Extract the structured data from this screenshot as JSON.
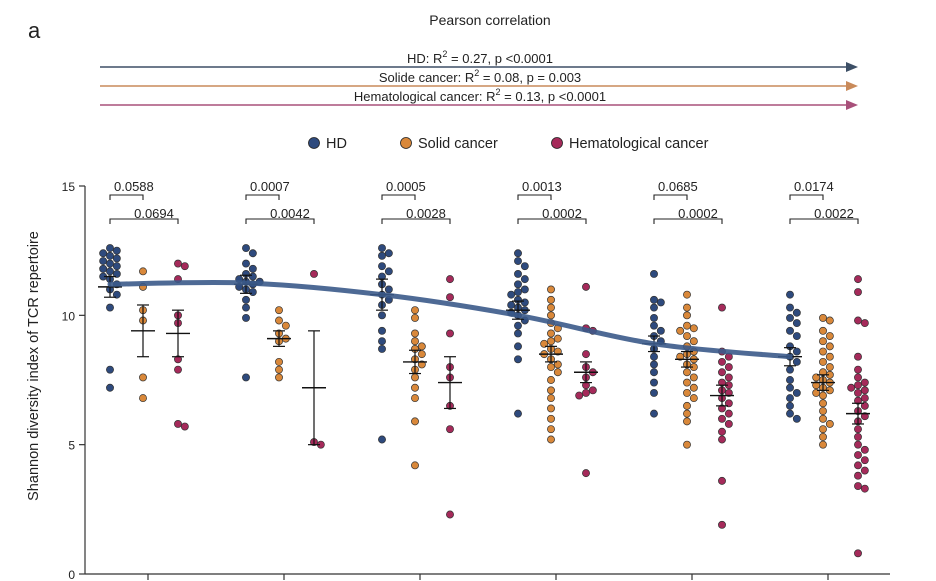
{
  "panel_label": "a",
  "header": {
    "title": "Pearson correlation",
    "lines": [
      {
        "prefix": "HD: R",
        "sup": "2",
        "suffix": " = 0.27,  p <0.0001",
        "color": "#3d4f66"
      },
      {
        "prefix": "Solide cancer: R",
        "sup": "2",
        "suffix": " = 0.08,  p = 0.003",
        "color": "#c98a5a"
      },
      {
        "prefix": "Hematological cancer: R",
        "sup": "2",
        "suffix": " = 0.13, p <0.0001",
        "color": "#a8507a"
      }
    ]
  },
  "legend": [
    {
      "label": "HD",
      "color": "#2e4a7d"
    },
    {
      "label": "Solid cancer",
      "color": "#d9883a"
    },
    {
      "label": "Hematological cancer",
      "color": "#a52a5a"
    }
  ],
  "chart_data": {
    "type": "scatter",
    "ylabel": "Shannon diversity index of TCR repertoire",
    "xlabel": "",
    "ylim": [
      0,
      15
    ],
    "yticks": [
      0,
      5,
      10,
      15
    ],
    "group_count": 6,
    "series_names": [
      "HD",
      "Solid cancer",
      "Hematological cancer"
    ],
    "groups": [
      {
        "hd": {
          "mean": 11.1,
          "sem": 0.4,
          "points": [
            12.6,
            12.5,
            12.4,
            12.3,
            12.2,
            12.1,
            12.0,
            11.9,
            11.8,
            11.7,
            11.6,
            11.5,
            11.4,
            11.2,
            11.0,
            10.8,
            10.3,
            7.9,
            7.2
          ]
        },
        "solid": {
          "mean": 9.4,
          "sem": 1.0,
          "points": [
            11.7,
            11.1,
            10.2,
            9.8,
            7.6,
            6.8
          ]
        },
        "hema": {
          "mean": 9.3,
          "sem": 0.9,
          "points": [
            12.0,
            11.9,
            11.4,
            10.0,
            9.7,
            8.3,
            7.9,
            5.8,
            5.7
          ]
        }
      },
      {
        "hd": {
          "mean": 11.2,
          "sem": 0.35,
          "points": [
            12.6,
            12.4,
            12.0,
            11.8,
            11.6,
            11.5,
            11.4,
            11.3,
            11.3,
            11.2,
            11.1,
            11.0,
            10.9,
            10.6,
            10.3,
            9.9,
            7.6
          ]
        },
        "solid": {
          "mean": 9.1,
          "sem": 0.3,
          "points": [
            10.2,
            9.8,
            9.6,
            9.3,
            9.1,
            9.0,
            8.2,
            7.9,
            7.6
          ]
        },
        "hema": {
          "mean": 7.2,
          "sem": 2.2,
          "points": [
            11.6,
            5.1,
            5.0
          ]
        }
      },
      {
        "hd": {
          "mean": 10.8,
          "sem": 0.6,
          "points": [
            12.6,
            12.4,
            12.3,
            11.9,
            11.7,
            11.5,
            11.2,
            11.0,
            10.8,
            10.6,
            10.4,
            10.0,
            9.4,
            9.0,
            8.7,
            5.2
          ]
        },
        "solid": {
          "mean": 8.2,
          "sem": 0.45,
          "points": [
            10.2,
            9.9,
            9.3,
            9.0,
            8.8,
            8.7,
            8.5,
            8.3,
            8.1,
            7.9,
            7.6,
            7.2,
            6.8,
            5.9,
            4.2
          ]
        },
        "hema": {
          "mean": 7.4,
          "sem": 1.0,
          "points": [
            11.4,
            10.7,
            9.3,
            8.0,
            7.6,
            6.5,
            5.6,
            2.3
          ]
        }
      },
      {
        "hd": {
          "mean": 10.2,
          "sem": 0.35,
          "points": [
            12.4,
            12.1,
            11.9,
            11.6,
            11.4,
            11.2,
            11.0,
            10.9,
            10.8,
            10.6,
            10.5,
            10.4,
            10.3,
            10.2,
            10.1,
            10.0,
            9.8,
            9.6,
            9.3,
            8.8,
            8.3,
            6.2
          ]
        },
        "solid": {
          "mean": 8.5,
          "sem": 0.3,
          "points": [
            11.0,
            10.6,
            10.3,
            10.0,
            9.7,
            9.5,
            9.3,
            9.1,
            9.0,
            8.9,
            8.7,
            8.6,
            8.5,
            8.3,
            8.1,
            8.0,
            7.8,
            7.5,
            7.1,
            6.8,
            6.4,
            6.0,
            5.6,
            5.2
          ]
        },
        "hema": {
          "mean": 7.8,
          "sem": 0.4,
          "points": [
            11.1,
            9.5,
            9.4,
            8.5,
            8.0,
            7.8,
            7.6,
            7.3,
            7.1,
            7.0,
            6.9,
            3.9
          ]
        }
      },
      {
        "hd": {
          "mean": 8.9,
          "sem": 0.3,
          "points": [
            11.6,
            10.6,
            10.5,
            10.3,
            9.9,
            9.6,
            9.4,
            9.2,
            9.0,
            8.7,
            8.4,
            8.1,
            7.8,
            7.4,
            7.0,
            6.2
          ]
        },
        "solid": {
          "mean": 8.3,
          "sem": 0.3,
          "points": [
            10.8,
            10.3,
            10.0,
            9.6,
            9.5,
            9.4,
            9.2,
            9.0,
            8.8,
            8.6,
            8.5,
            8.4,
            8.3,
            8.1,
            8.0,
            7.8,
            7.6,
            7.4,
            7.2,
            7.0,
            6.8,
            6.5,
            6.2,
            5.9,
            5.0
          ]
        },
        "hema": {
          "mean": 6.9,
          "sem": 0.4,
          "points": [
            10.3,
            8.6,
            8.4,
            8.2,
            8.0,
            7.8,
            7.6,
            7.4,
            7.3,
            7.1,
            7.0,
            6.8,
            6.6,
            6.4,
            6.2,
            6.0,
            5.8,
            5.5,
            5.2,
            3.6,
            1.9
          ]
        }
      },
      {
        "hd": {
          "mean": 8.4,
          "sem": 0.35,
          "points": [
            10.8,
            10.3,
            10.1,
            9.9,
            9.7,
            9.4,
            9.2,
            8.8,
            8.6,
            8.4,
            8.2,
            7.9,
            7.5,
            7.2,
            7.0,
            6.8,
            6.5,
            6.2,
            6.0
          ]
        },
        "solid": {
          "mean": 7.4,
          "sem": 0.3,
          "points": [
            9.9,
            9.8,
            9.4,
            9.2,
            9.0,
            8.8,
            8.6,
            8.4,
            8.2,
            8.0,
            7.8,
            7.7,
            7.6,
            7.5,
            7.4,
            7.3,
            7.2,
            7.1,
            7.0,
            6.9,
            6.6,
            6.3,
            6.0,
            5.8,
            5.6,
            5.3,
            5.0
          ]
        },
        "hema": {
          "mean": 6.2,
          "sem": 0.4,
          "points": [
            11.4,
            10.9,
            9.8,
            9.7,
            8.4,
            7.9,
            7.6,
            7.4,
            7.3,
            7.2,
            7.1,
            7.0,
            6.8,
            6.7,
            6.5,
            6.3,
            6.1,
            5.9,
            5.6,
            5.3,
            5.0,
            4.8,
            4.6,
            4.4,
            4.2,
            4.0,
            3.8,
            3.4,
            3.3,
            0.8
          ]
        }
      }
    ],
    "trend_line": {
      "series": "HD",
      "x": [
        1,
        2,
        3,
        4,
        5,
        6
      ],
      "y": [
        11.2,
        11.25,
        10.8,
        10.0,
        8.9,
        8.4
      ],
      "color": "#3b5a8a"
    },
    "p_values": [
      {
        "group": 1,
        "hd_vs_solid": "0.0588",
        "hd_vs_hema": "0.0694"
      },
      {
        "group": 2,
        "hd_vs_solid": "0.0007",
        "hd_vs_hema": "0.0042"
      },
      {
        "group": 3,
        "hd_vs_solid": "0.0005",
        "hd_vs_hema": "0.0028"
      },
      {
        "group": 4,
        "hd_vs_solid": "0.0013",
        "hd_vs_hema": "0.0002"
      },
      {
        "group": 5,
        "hd_vs_solid": "0.0685",
        "hd_vs_hema": "0.0002"
      },
      {
        "group": 6,
        "hd_vs_solid": "0.0174",
        "hd_vs_hema": "0.0022"
      }
    ]
  }
}
